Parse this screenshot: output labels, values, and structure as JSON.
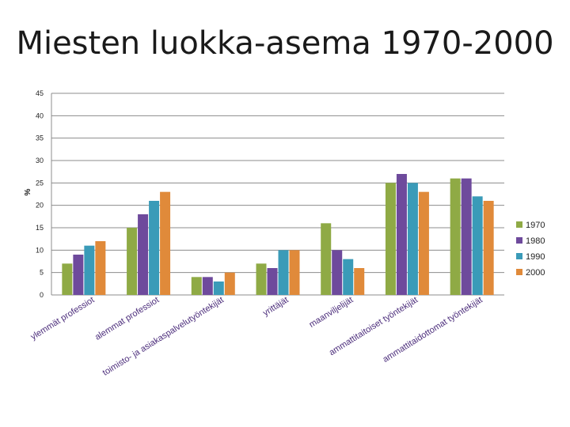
{
  "chart_data": {
    "type": "bar",
    "title": "Miesten luokka-asema 1970-2000",
    "ylabel": "%",
    "ylim": [
      0,
      45
    ],
    "yticks": [
      0,
      5,
      10,
      15,
      20,
      25,
      30,
      35,
      40,
      45
    ],
    "grid": true,
    "legend_position": "right",
    "categories": [
      "ylemmät professiot",
      "alemmat professiot",
      "toimisto- ja asiakaspalvelutyöntekijät",
      "yrittäjät",
      "maanviljelijät",
      "ammattitaitoiset työntekijät",
      "ammattitaidottomat työntekijät"
    ],
    "series": [
      {
        "name": "1970",
        "color": "#8faa45",
        "values": [
          7,
          15,
          4,
          7,
          16,
          25,
          26
        ]
      },
      {
        "name": "1980",
        "color": "#6e4a9c",
        "values": [
          9,
          18,
          4,
          6,
          10,
          27,
          26
        ]
      },
      {
        "name": "1990",
        "color": "#3a9bb8",
        "values": [
          11,
          21,
          3,
          10,
          8,
          25,
          22
        ]
      },
      {
        "name": "2000",
        "color": "#e08a3a",
        "values": [
          12,
          23,
          5,
          10,
          6,
          23,
          21
        ]
      }
    ]
  }
}
